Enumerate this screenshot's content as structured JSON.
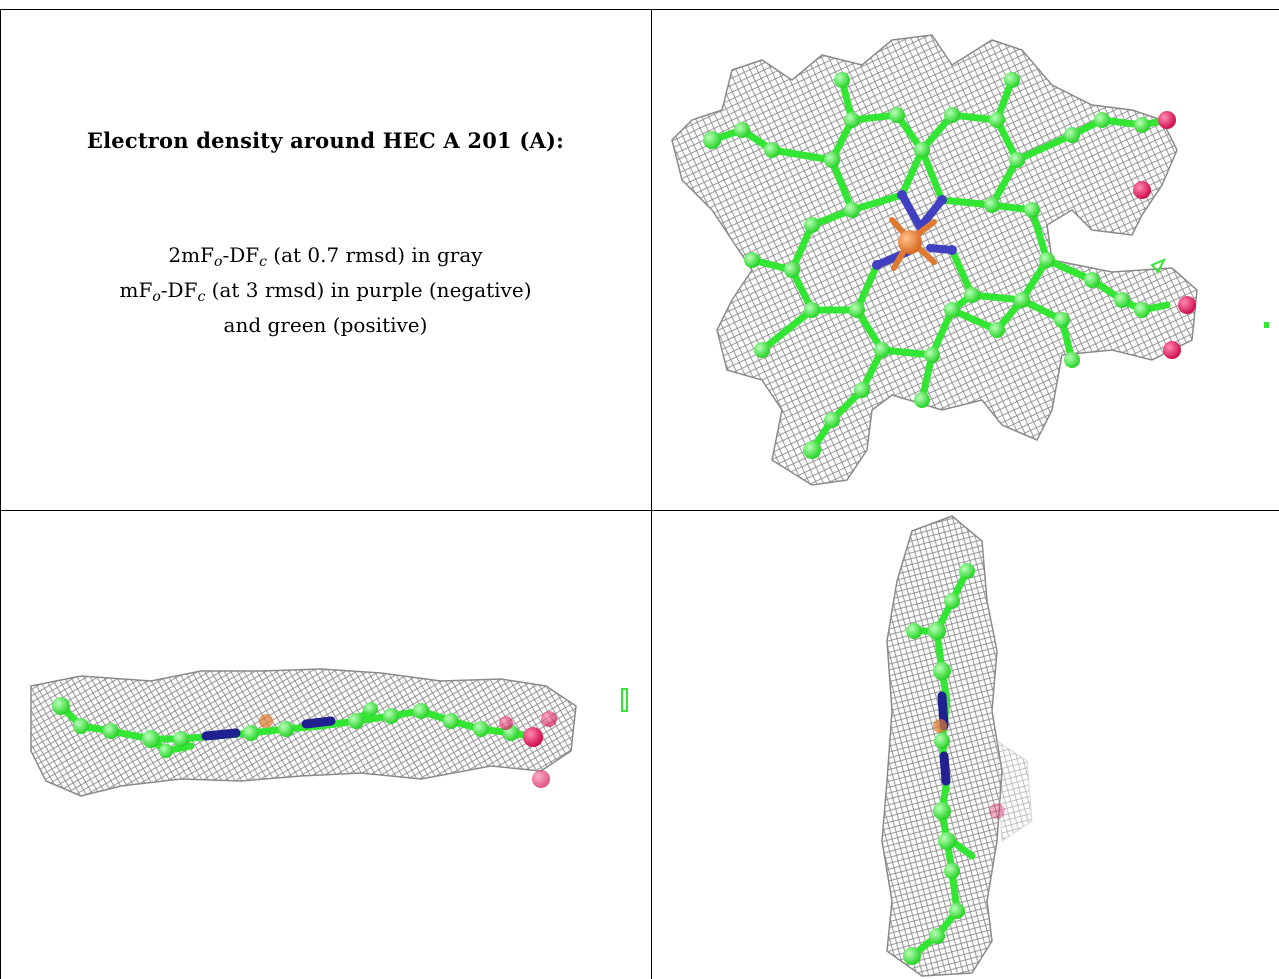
{
  "caption": {
    "title": "Electron density around HEC A 201 (A):",
    "line1": {
      "prefix": "2mF",
      "sub_o": "o",
      "mid": "-DF",
      "sub_c": "c",
      "suffix": " (at 0.7 rmsd) in gray"
    },
    "line2": {
      "prefix": "mF",
      "sub_o": "o",
      "mid": "-DF",
      "sub_c": "c",
      "suffix": " (at 3 rmsd) in purple (negative)"
    },
    "line3": "and green (positive)"
  },
  "colors": {
    "carbon": "#33e633",
    "nitrogen": "#4040c0",
    "oxygen": "#e01860",
    "iron": "#e07a30",
    "mesh": "#8a8a8a",
    "border": "#000000"
  },
  "views": [
    "top-view",
    "side-view",
    "edge-view"
  ]
}
